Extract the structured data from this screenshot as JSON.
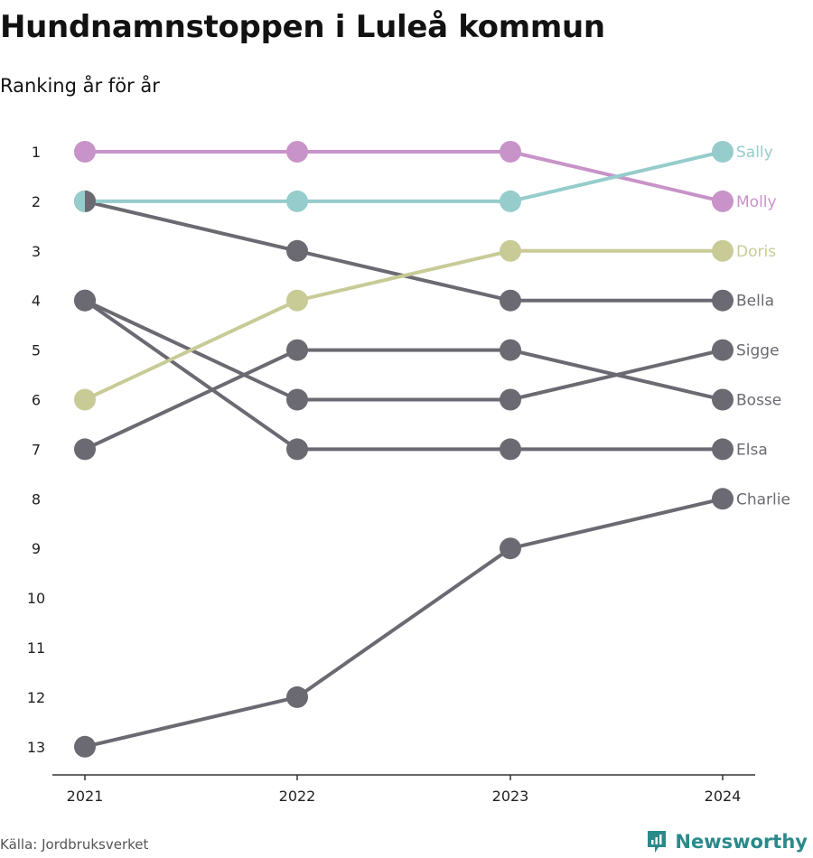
{
  "title": "Hundnamnstoppen i Luleå kommun",
  "subtitle": "Ranking år för år",
  "source": "Källa: Jordbruksverket",
  "brand": {
    "name": "Newsworthy",
    "icon": "newsworthy-logo-icon",
    "color": "#2a8a8a"
  },
  "chart_data": {
    "type": "line",
    "x": [
      "2021",
      "2022",
      "2023",
      "2024"
    ],
    "y_ticks": [
      "1",
      "2",
      "3",
      "4",
      "5",
      "6",
      "7",
      "8",
      "9",
      "10",
      "11",
      "12",
      "13"
    ],
    "y_inverted": true,
    "ylim": [
      1,
      13
    ],
    "grid": false,
    "legend": "end-labels",
    "series": [
      {
        "name": "Charlie",
        "values": [
          13,
          12,
          9,
          8
        ],
        "color": "#6b6a72"
      },
      {
        "name": "Elsa",
        "values": [
          4,
          7,
          7,
          7
        ],
        "color": "#6b6a72"
      },
      {
        "name": "Sigge",
        "values": [
          4,
          6,
          6,
          5
        ],
        "color": "#6b6a72"
      },
      {
        "name": "Bosse",
        "values": [
          7,
          5,
          5,
          6
        ],
        "color": "#6b6a72"
      },
      {
        "name": "Bella",
        "values": [
          2,
          3,
          4,
          4
        ],
        "color": "#6b6a72"
      },
      {
        "name": "Doris",
        "values": [
          6,
          4,
          3,
          3
        ],
        "color": "#c9cb97"
      },
      {
        "name": "Molly",
        "values": [
          1,
          1,
          1,
          2
        ],
        "color": "#c893c8"
      },
      {
        "name": "Sally",
        "values": [
          2,
          2,
          2,
          1
        ],
        "color": "#96cccc"
      }
    ]
  }
}
